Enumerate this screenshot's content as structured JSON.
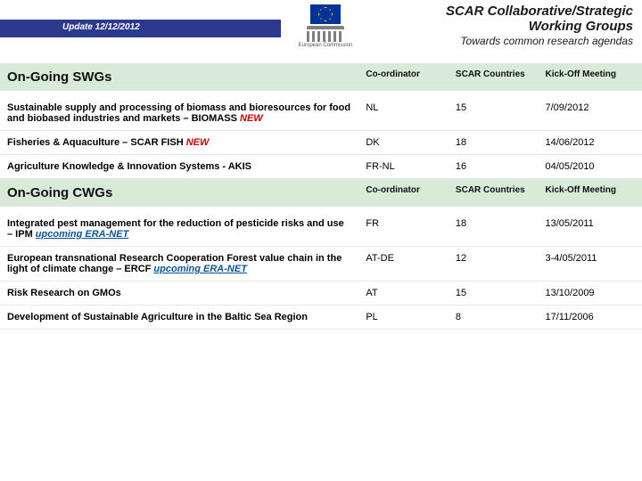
{
  "header": {
    "update": "Update 12/12/2012",
    "title1": "SCAR Collaborative/Strategic",
    "title2": "Working Groups",
    "title3": "Towards common research agendas",
    "logo_label": "European Commission"
  },
  "section1": {
    "title": "On-Going SWGs",
    "col_coord": "Co-ordinator",
    "col_countries": "SCAR Countries",
    "col_kickoff": "Kick-Off Meeting"
  },
  "swg_rows": [
    {
      "desc": "Sustainable supply and processing of biomass and bioresources for food and biobased industries and markets – BIOMASS ",
      "tag": "NEW",
      "coord": "NL",
      "countries": "15",
      "kickoff": "7/09/2012"
    },
    {
      "desc": "Fisheries & Aquaculture – SCAR FISH ",
      "tag": "NEW",
      "coord": "DK",
      "countries": "18",
      "kickoff": "14/06/2012"
    },
    {
      "desc": "Agriculture Knowledge & Innovation Systems - AKIS",
      "tag": "",
      "coord": "FR-NL",
      "countries": "16",
      "kickoff": "04/05/2010"
    }
  ],
  "section2": {
    "title": "On-Going CWGs",
    "col_coord": "Co-ordinator",
    "col_countries": "SCAR Countries",
    "col_kickoff": "Kick-Off Meeting"
  },
  "cwg_rows": [
    {
      "desc": "Integrated pest management for the reduction of pesticide risks and use – IPM ",
      "eranet": "upcoming ERA-NET",
      "coord": "FR",
      "countries": "18",
      "kickoff": "13/05/2011"
    },
    {
      "desc": "European transnational Research Cooperation Forest value chain in the light of climate change – ERCF ",
      "eranet": "upcoming ERA-NET",
      "coord": "AT-DE",
      "countries": "12",
      "kickoff": "3-4/05/2011"
    },
    {
      "desc": "Risk Research on GMOs",
      "eranet": "",
      "coord": "AT",
      "countries": "15",
      "kickoff": "13/10/2009"
    },
    {
      "desc": "Development of Sustainable Agriculture in the Baltic Sea Region",
      "eranet": "",
      "coord": "PL",
      "countries": "8",
      "kickoff": "17/11/2006"
    }
  ]
}
